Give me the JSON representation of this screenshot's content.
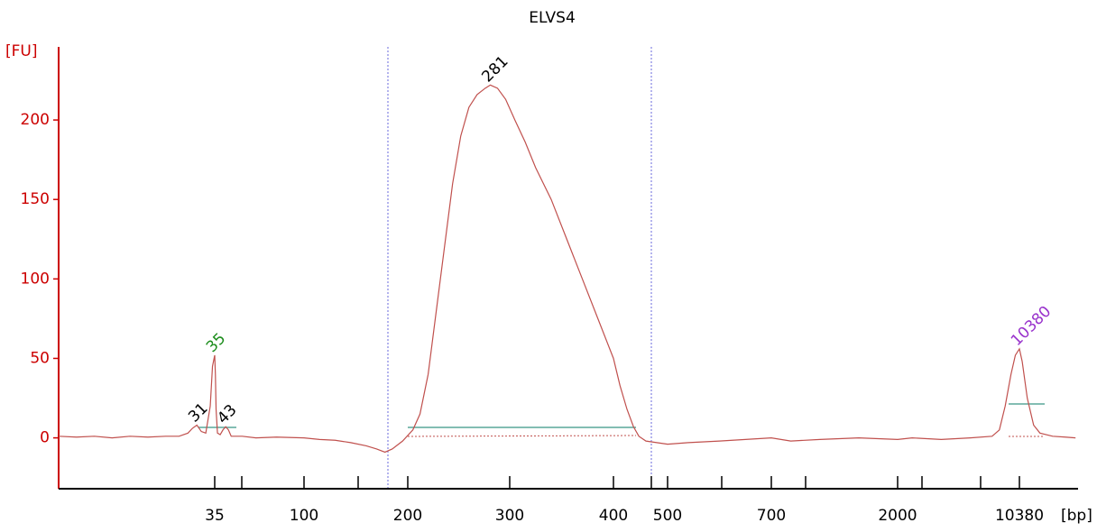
{
  "chart_data": {
    "type": "line",
    "title": "ELVS4",
    "ylabel": "[FU]",
    "xlabel": "[bp]",
    "x": [
      0,
      4,
      8,
      12,
      16,
      20,
      24,
      27,
      29,
      30,
      31,
      32,
      33,
      34,
      34.5,
      35,
      35.5,
      36,
      37,
      39,
      41,
      43,
      45,
      47,
      55,
      65,
      80,
      100,
      115,
      130,
      145,
      160,
      170,
      178,
      185,
      195,
      205,
      212,
      220,
      228,
      236,
      244,
      252,
      260,
      268,
      276,
      281,
      288,
      296,
      305,
      315,
      325,
      340,
      355,
      370,
      385,
      400,
      412,
      425,
      437,
      447,
      460,
      480,
      500,
      540,
      600,
      700,
      900,
      1200,
      1600,
      2000,
      3000,
      5000,
      7000,
      8500,
      9000,
      9400,
      9800,
      10100,
      10380,
      10600,
      11000,
      11500,
      12000,
      13000,
      14000,
      14800
    ],
    "series": [
      {
        "color": "#c0504d",
        "values": [
          1,
          0.5,
          1,
          0,
          1,
          0.5,
          1,
          1,
          3,
          6,
          8,
          4,
          3,
          20,
          45,
          52,
          40,
          18,
          3,
          2,
          5,
          7,
          5,
          1,
          1,
          0,
          0.5,
          0,
          -1,
          -1.5,
          -3,
          -5,
          -7,
          -9,
          -7,
          -2,
          5,
          15,
          40,
          80,
          120,
          160,
          190,
          208,
          216,
          220,
          222,
          220,
          213,
          200,
          186,
          170,
          150,
          125,
          100,
          75,
          50,
          33,
          18,
          7,
          1,
          -2,
          -3,
          -4,
          -3,
          -2,
          0,
          -2,
          -1,
          0,
          -1,
          0,
          -1,
          0,
          1,
          5,
          20,
          40,
          52,
          56,
          48,
          25,
          8,
          3,
          1,
          0.5,
          0
        ]
      }
    ],
    "peaks": [
      {
        "x": 31,
        "y": 8,
        "color": "#000000"
      },
      {
        "x": 35,
        "y": 52,
        "color": "#1a8c1a"
      },
      {
        "x": 43,
        "y": 7,
        "color": "#000000"
      },
      {
        "x": 281,
        "y": 222,
        "color": "#000000"
      },
      {
        "x": 10380,
        "y": 56,
        "color": "#9933cc"
      }
    ],
    "xlim": [
      0,
      15000
    ],
    "xticks": [
      35,
      100,
      200,
      300,
      400,
      500,
      700,
      2000,
      10380
    ],
    "ylim": [
      -32,
      246
    ],
    "yticks": [
      0,
      50,
      100,
      150,
      200
    ],
    "axis_color": "#cc0000"
  }
}
